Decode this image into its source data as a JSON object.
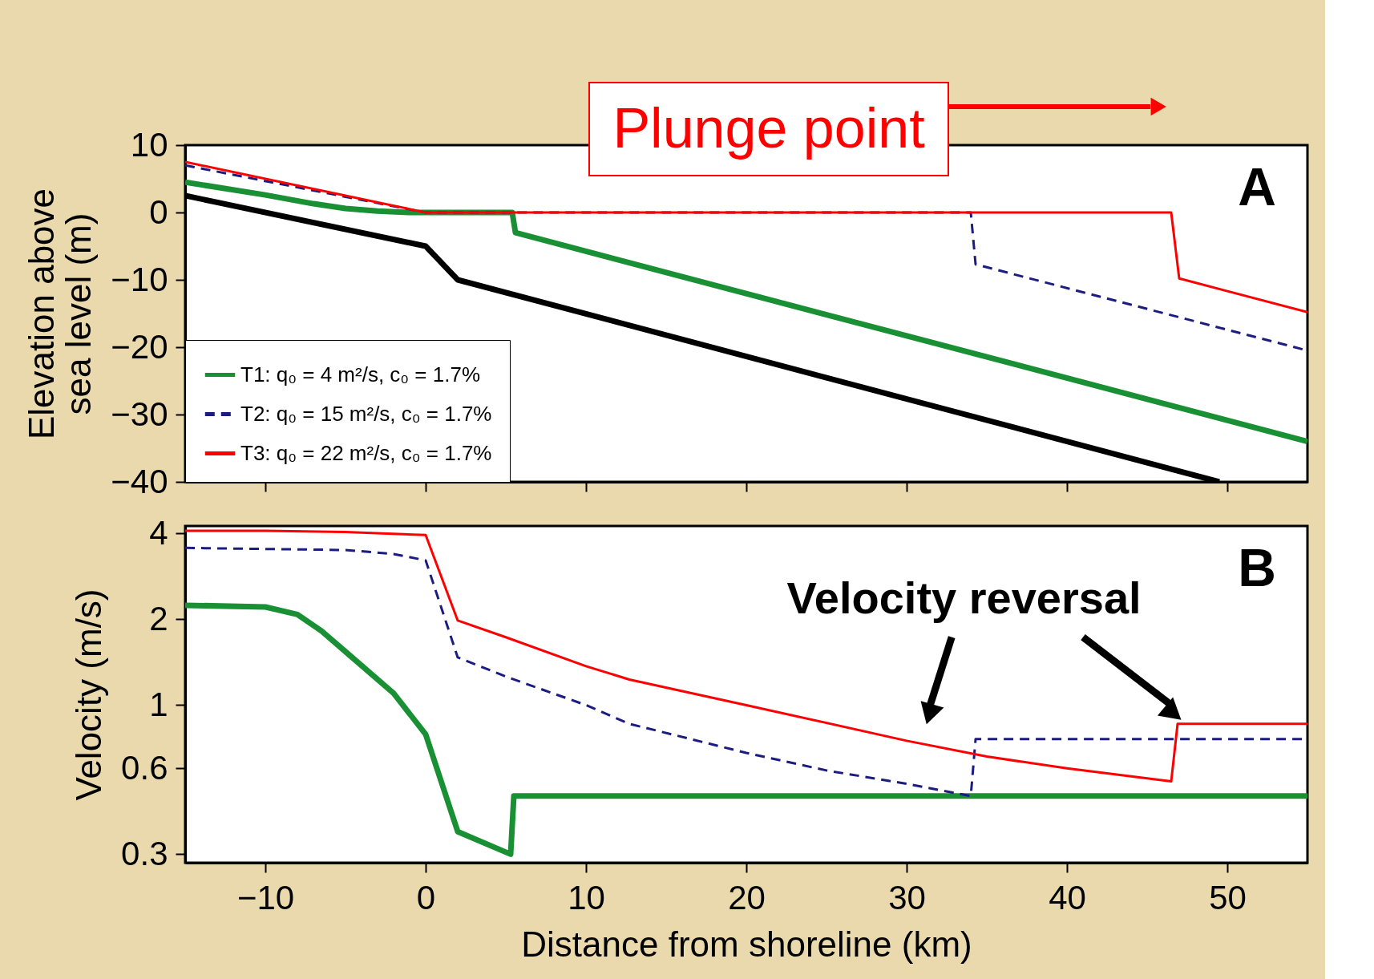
{
  "chart_data": [
    {
      "type": "line",
      "ylabel": "Elevation above\nsea level (m)",
      "xlim": [
        -15,
        55
      ],
      "xticks": [
        -10,
        0,
        10,
        20,
        30,
        40,
        50
      ],
      "ylim": [
        -40,
        10
      ],
      "yticks": [
        10,
        0,
        -10,
        -20,
        -30,
        -40
      ],
      "tick_labels": "y",
      "legend": "bottom left",
      "grid": false,
      "annotations": [
        "A",
        "Plunge point"
      ],
      "series": [
        {
          "name": "T1: q₀ = 4 m²/s, c₀ = 1.7%",
          "color": "#1a9035",
          "line_style": "solid",
          "x": [
            -15,
            -10,
            -7,
            -5,
            -3,
            -1,
            0,
            5.4,
            5.6,
            55
          ],
          "values": [
            4.5,
            2.6,
            1.3,
            0.6,
            0.2,
            0,
            0,
            0,
            -3,
            -34
          ]
        },
        {
          "name": "T2: q₀ = 15 m²/s, c₀ = 1.7%",
          "color": "#1c1c80",
          "line_style": "dashed",
          "x": [
            -15,
            0,
            34,
            34.3,
            55
          ],
          "values": [
            7,
            0,
            0,
            -7.7,
            -20.5
          ]
        },
        {
          "name": "T3: q₀ = 22 m²/s, c₀ = 1.7%",
          "color": "#ff0000",
          "line_style": "solid",
          "x": [
            -15,
            0,
            46.5,
            47,
            55
          ],
          "values": [
            7.5,
            0,
            0,
            -9.8,
            -14.8
          ]
        },
        {
          "color": "#000000",
          "line_style": "solid",
          "x": [
            -15,
            0,
            2,
            49.5
          ],
          "values": [
            2.5,
            -5,
            -10,
            -40
          ]
        }
      ]
    },
    {
      "type": "line",
      "ylabel": "Velocity (m/s)",
      "xlabel": "Distance from shoreline (km)",
      "xlim": [
        -15,
        55
      ],
      "xticks": [
        -10,
        0,
        10,
        20,
        30,
        40,
        50
      ],
      "ylim": [
        0.28,
        4.25
      ],
      "yticks": [
        0.3,
        0.6,
        1,
        2,
        4
      ],
      "log": true,
      "legend": false,
      "grid": false,
      "annotations": [
        "B",
        "Velocity reversal"
      ],
      "series": [
        {
          "color": "#1a9035",
          "line_style": "solid",
          "x": [
            -15,
            -10,
            -8,
            -6.5,
            -5,
            -2,
            0,
            2,
            5.3,
            5.5,
            55
          ],
          "values": [
            2.24,
            2.21,
            2.08,
            1.82,
            1.54,
            1.1,
            0.79,
            0.36,
            0.3,
            0.48,
            0.48
          ]
        },
        {
          "color": "#1c1c80",
          "line_style": "dashed",
          "x": [
            -15,
            -5,
            -2,
            0,
            2,
            5,
            10,
            12.7,
            20,
            25,
            30,
            34,
            34.3,
            55
          ],
          "values": [
            3.56,
            3.5,
            3.39,
            3.22,
            1.47,
            1.26,
            1.0,
            0.86,
            0.68,
            0.59,
            0.53,
            0.48,
            0.76,
            0.76
          ]
        },
        {
          "color": "#ff0000",
          "line_style": "solid",
          "x": [
            -15,
            -10,
            -5,
            0,
            2,
            5,
            10,
            12.7,
            20,
            30,
            35,
            40,
            46.5,
            46.9,
            55
          ],
          "values": [
            4.09,
            4.09,
            4.05,
            3.95,
            1.98,
            1.73,
            1.37,
            1.23,
            1.0,
            0.75,
            0.66,
            0.6,
            0.54,
            0.86,
            0.86
          ]
        }
      ]
    }
  ]
}
